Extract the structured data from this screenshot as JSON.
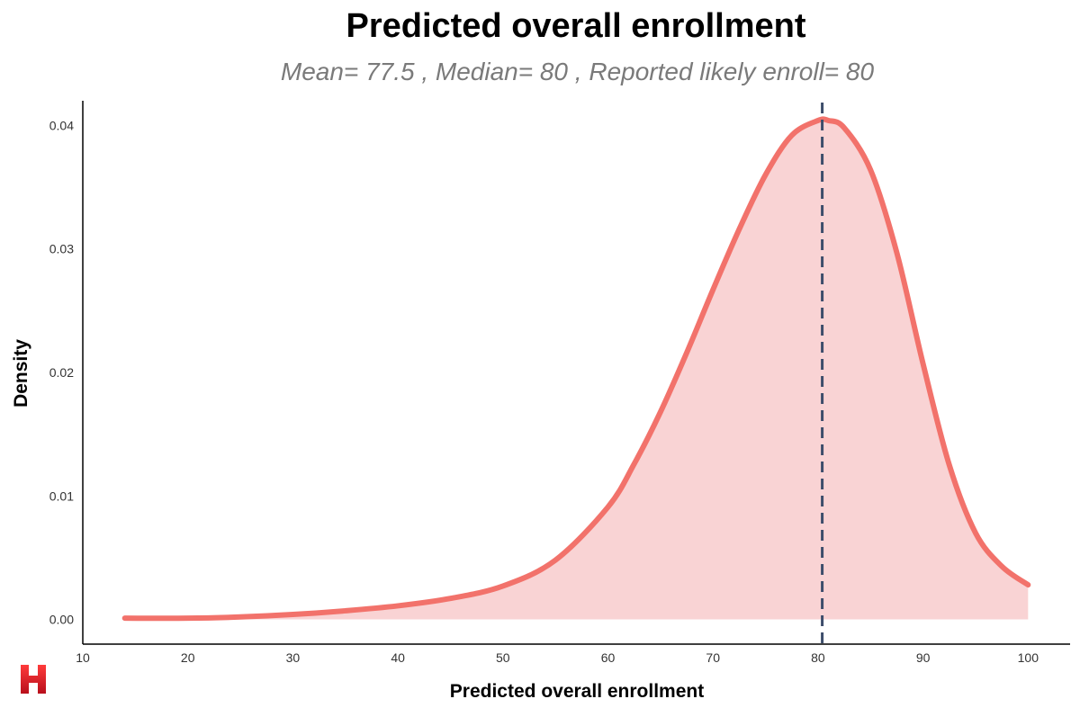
{
  "chart_data": {
    "type": "area",
    "title": "Predicted overall enrollment",
    "subtitle": "Mean= 77.5 , Median= 80 , Reported likely enroll= 80",
    "xlabel": "Predicted overall enrollment",
    "ylabel": "Density",
    "xlim": [
      10,
      104
    ],
    "ylim": [
      -0.002,
      0.042
    ],
    "x_ticks": [
      10,
      20,
      30,
      40,
      50,
      60,
      70,
      80,
      90,
      100
    ],
    "y_ticks": [
      0.0,
      0.01,
      0.02,
      0.03,
      0.04
    ],
    "y_tick_labels": [
      "0.00",
      "0.01",
      "0.02",
      "0.03",
      "0.04"
    ],
    "grid": false,
    "series": [
      {
        "x": [
          14,
          20,
          25,
          30,
          35,
          40,
          45,
          50,
          55,
          60,
          62.5,
          65,
          67.5,
          70,
          72.5,
          75,
          77.5,
          80,
          81,
          82.5,
          85,
          87.5,
          90,
          92.5,
          95,
          97.5,
          100
        ],
        "y": [
          0.0001,
          0.0001,
          0.0002,
          0.0004,
          0.0007,
          0.0011,
          0.0017,
          0.0027,
          0.0048,
          0.0091,
          0.0126,
          0.0168,
          0.0216,
          0.0267,
          0.0316,
          0.036,
          0.0392,
          0.0404,
          0.0404,
          0.0398,
          0.0364,
          0.0297,
          0.0207,
          0.0125,
          0.007,
          0.0043,
          0.0028
        ]
      }
    ],
    "reference_line": {
      "x": 80.4,
      "style": "dashed"
    },
    "colors": {
      "line": "#f2726b",
      "fill": "#f9d3d4",
      "reference": "#3d4d6b"
    }
  },
  "logo": {
    "name": "H",
    "color": "#e11d2e"
  }
}
